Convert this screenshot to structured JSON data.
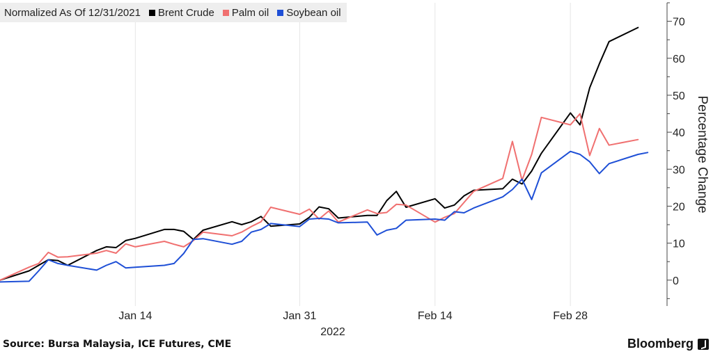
{
  "legend": {
    "title": "Normalized As Of 12/31/2021",
    "items": [
      {
        "label": "Brent Crude",
        "color": "#000000"
      },
      {
        "label": "Palm oil",
        "color": "#f07070"
      },
      {
        "label": "Soybean oil",
        "color": "#1e4fd6"
      }
    ]
  },
  "footer": {
    "source": "Source: Bursa Malaysia, ICE Futures, CME",
    "brand": "Bloomberg",
    "brand_icon": "bloomberg-terminal-icon"
  },
  "chart_data": {
    "type": "line",
    "ylabel": "Percentage Change",
    "xlabel": "2022",
    "ylim": [
      -7,
      75
    ],
    "yticks": [
      0,
      10,
      20,
      30,
      40,
      50,
      60,
      70
    ],
    "xticks": [
      {
        "label": "Jan 14",
        "date": "2022-01-14"
      },
      {
        "label": "Jan 31",
        "date": "2022-01-31"
      },
      {
        "label": "Feb 14",
        "date": "2022-02-14"
      },
      {
        "label": "Feb 28",
        "date": "2022-02-28"
      }
    ],
    "xrange": [
      "2021-12-31",
      "2022-03-10"
    ],
    "grid": "vertical",
    "y_axis_side": "right",
    "series": [
      {
        "name": "Brent Crude",
        "color": "#000000",
        "points": [
          [
            "2021-12-31",
            0
          ],
          [
            "2022-01-03",
            2.5
          ],
          [
            "2022-01-04",
            4
          ],
          [
            "2022-01-05",
            5.5
          ],
          [
            "2022-01-06",
            5.3
          ],
          [
            "2022-01-07",
            4
          ],
          [
            "2022-01-10",
            8
          ],
          [
            "2022-01-11",
            9
          ],
          [
            "2022-01-12",
            8.8
          ],
          [
            "2022-01-13",
            10.7
          ],
          [
            "2022-01-14",
            11.3
          ],
          [
            "2022-01-17",
            13.7
          ],
          [
            "2022-01-18",
            13.7
          ],
          [
            "2022-01-19",
            13.2
          ],
          [
            "2022-01-20",
            11
          ],
          [
            "2022-01-21",
            13.5
          ],
          [
            "2022-01-24",
            15.8
          ],
          [
            "2022-01-25",
            15
          ],
          [
            "2022-01-26",
            15.8
          ],
          [
            "2022-01-27",
            17.2
          ],
          [
            "2022-01-28",
            14.6
          ],
          [
            "2022-01-31",
            15.2
          ],
          [
            "2022-02-01",
            17
          ],
          [
            "2022-02-02",
            19.8
          ],
          [
            "2022-02-03",
            19.3
          ],
          [
            "2022-02-04",
            16.8
          ],
          [
            "2022-02-07",
            17.5
          ],
          [
            "2022-02-08",
            17.5
          ],
          [
            "2022-02-09",
            21.5
          ],
          [
            "2022-02-10",
            24
          ],
          [
            "2022-02-11",
            19.7
          ],
          [
            "2022-02-14",
            22
          ],
          [
            "2022-02-15",
            19.5
          ],
          [
            "2022-02-16",
            20.3
          ],
          [
            "2022-02-17",
            22.8
          ],
          [
            "2022-02-18",
            24.3
          ],
          [
            "2022-02-21",
            24.7
          ],
          [
            "2022-02-22",
            27.3
          ],
          [
            "2022-02-23",
            26
          ],
          [
            "2022-02-24",
            29.5
          ],
          [
            "2022-02-25",
            34.3
          ],
          [
            "2022-02-28",
            45.2
          ],
          [
            "2022-03-01",
            42
          ],
          [
            "2022-03-02",
            52
          ],
          [
            "2022-03-03",
            58.5
          ],
          [
            "2022-03-04",
            64.5
          ],
          [
            "2022-03-07",
            68.3
          ]
        ]
      },
      {
        "name": "Palm oil",
        "color": "#f07070",
        "points": [
          [
            "2021-12-31",
            0
          ],
          [
            "2022-01-03",
            3.5
          ],
          [
            "2022-01-04",
            4.5
          ],
          [
            "2022-01-05",
            7.5
          ],
          [
            "2022-01-06",
            6.2
          ],
          [
            "2022-01-07",
            6.3
          ],
          [
            "2022-01-10",
            7.3
          ],
          [
            "2022-01-11",
            8
          ],
          [
            "2022-01-12",
            7.3
          ],
          [
            "2022-01-13",
            9.8
          ],
          [
            "2022-01-14",
            9
          ],
          [
            "2022-01-17",
            10.5
          ],
          [
            "2022-01-18",
            9.7
          ],
          [
            "2022-01-19",
            9
          ],
          [
            "2022-01-20",
            10.7
          ],
          [
            "2022-01-21",
            13
          ],
          [
            "2022-01-24",
            12
          ],
          [
            "2022-01-25",
            13
          ],
          [
            "2022-01-26",
            14.5
          ],
          [
            "2022-01-27",
            15.8
          ],
          [
            "2022-01-28",
            19.7
          ],
          [
            "2022-01-31",
            17.8
          ],
          [
            "2022-02-01",
            19.2
          ],
          [
            "2022-02-02",
            16.5
          ],
          [
            "2022-02-03",
            18.7
          ],
          [
            "2022-02-04",
            15.7
          ],
          [
            "2022-02-07",
            19
          ],
          [
            "2022-02-08",
            18
          ],
          [
            "2022-02-09",
            18.3
          ],
          [
            "2022-02-10",
            20.5
          ],
          [
            "2022-02-11",
            20.3
          ],
          [
            "2022-02-14",
            15.7
          ],
          [
            "2022-02-15",
            17
          ],
          [
            "2022-02-16",
            18
          ],
          [
            "2022-02-17",
            21
          ],
          [
            "2022-02-18",
            24
          ],
          [
            "2022-02-21",
            27.5
          ],
          [
            "2022-02-22",
            37.5
          ],
          [
            "2022-02-23",
            27
          ],
          [
            "2022-02-24",
            34
          ],
          [
            "2022-02-25",
            44
          ],
          [
            "2022-02-28",
            42
          ],
          [
            "2022-03-01",
            45
          ],
          [
            "2022-03-02",
            33.7
          ],
          [
            "2022-03-03",
            41
          ],
          [
            "2022-03-04",
            36.5
          ],
          [
            "2022-03-07",
            38
          ]
        ]
      },
      {
        "name": "Soybean oil",
        "color": "#1e4fd6",
        "points": [
          [
            "2021-12-31",
            -0.5
          ],
          [
            "2022-01-03",
            -0.3
          ],
          [
            "2022-01-04",
            2.5
          ],
          [
            "2022-01-05",
            5.5
          ],
          [
            "2022-01-06",
            4.5
          ],
          [
            "2022-01-07",
            4
          ],
          [
            "2022-01-10",
            2.7
          ],
          [
            "2022-01-11",
            4
          ],
          [
            "2022-01-12",
            5
          ],
          [
            "2022-01-13",
            3.3
          ],
          [
            "2022-01-14",
            3.5
          ],
          [
            "2022-01-17",
            4
          ],
          [
            "2022-01-18",
            4.5
          ],
          [
            "2022-01-19",
            7.2
          ],
          [
            "2022-01-20",
            11
          ],
          [
            "2022-01-21",
            11.2
          ],
          [
            "2022-01-24",
            9.7
          ],
          [
            "2022-01-25",
            10.5
          ],
          [
            "2022-01-26",
            13
          ],
          [
            "2022-01-27",
            13.7
          ],
          [
            "2022-01-28",
            15.3
          ],
          [
            "2022-01-31",
            14.5
          ],
          [
            "2022-02-01",
            16.5
          ],
          [
            "2022-02-02",
            16.7
          ],
          [
            "2022-02-03",
            16.5
          ],
          [
            "2022-02-04",
            15.5
          ],
          [
            "2022-02-07",
            15.7
          ],
          [
            "2022-02-08",
            12.2
          ],
          [
            "2022-02-09",
            13.5
          ],
          [
            "2022-02-10",
            14
          ],
          [
            "2022-02-11",
            16.2
          ],
          [
            "2022-02-14",
            16.5
          ],
          [
            "2022-02-15",
            16.2
          ],
          [
            "2022-02-16",
            18.5
          ],
          [
            "2022-02-17",
            18.2
          ],
          [
            "2022-02-18",
            19.5
          ],
          [
            "2022-02-21",
            22.5
          ],
          [
            "2022-02-22",
            24.5
          ],
          [
            "2022-02-23",
            27.3
          ],
          [
            "2022-02-24",
            21.8
          ],
          [
            "2022-02-25",
            29
          ],
          [
            "2022-02-28",
            34.8
          ],
          [
            "2022-03-01",
            34
          ],
          [
            "2022-03-02",
            32
          ],
          [
            "2022-03-03",
            28.8
          ],
          [
            "2022-03-04",
            31.5
          ],
          [
            "2022-03-07",
            34
          ],
          [
            "2022-03-08",
            34.5
          ]
        ]
      }
    ]
  }
}
